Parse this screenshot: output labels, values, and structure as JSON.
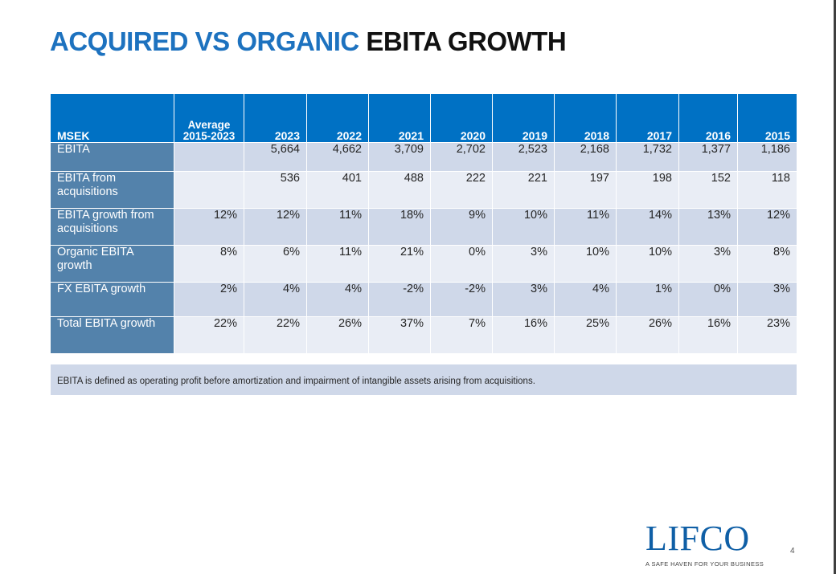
{
  "title": {
    "part1": "ACQUIRED VS ORGANIC",
    "part2": "EBITA GROWTH"
  },
  "table": {
    "headers": [
      "MSEK",
      "Average 2015-2023",
      "2023",
      "2022",
      "2021",
      "2020",
      "2019",
      "2018",
      "2017",
      "2016",
      "2015"
    ],
    "rows": [
      {
        "label": "EBITA",
        "values": [
          "",
          "5,664",
          "4,662",
          "3,709",
          "2,702",
          "2,523",
          "2,168",
          "1,732",
          "1,377",
          "1,186"
        ]
      },
      {
        "label": "EBITA from acquisitions",
        "values": [
          "",
          "536",
          "401",
          "488",
          "222",
          "221",
          "197",
          "198",
          "152",
          "118"
        ]
      },
      {
        "label": "EBITA growth from acquisitions",
        "values": [
          "12%",
          "12%",
          "11%",
          "18%",
          "9%",
          "10%",
          "11%",
          "14%",
          "13%",
          "12%"
        ]
      },
      {
        "label": "Organic EBITA growth",
        "values": [
          "8%",
          "6%",
          "11%",
          "21%",
          "0%",
          "3%",
          "10%",
          "10%",
          "3%",
          "8%"
        ]
      },
      {
        "label": "FX EBITA growth",
        "values": [
          "2%",
          "4%",
          "4%",
          "-2%",
          "-2%",
          "3%",
          "4%",
          "1%",
          "0%",
          "3%"
        ]
      },
      {
        "label": "Total EBITA growth",
        "values": [
          "22%",
          "22%",
          "26%",
          "37%",
          "7%",
          "16%",
          "25%",
          "26%",
          "16%",
          "23%"
        ]
      }
    ]
  },
  "footnote": "EBITA is defined as operating profit before amortization and impairment of intangible assets arising from acquisitions.",
  "logo": {
    "word": "LIFCO",
    "tagline": "A SAFE HAVEN FOR YOUR BUSINESS"
  },
  "page_number": "4",
  "colors": {
    "title_blue": "#1d72bf",
    "header_blue": "#0071c4",
    "row_label": "#5382ab",
    "row_dark": "#cfd8e9",
    "row_light": "#e9edf5",
    "logo_blue": "#0f5fa6"
  }
}
